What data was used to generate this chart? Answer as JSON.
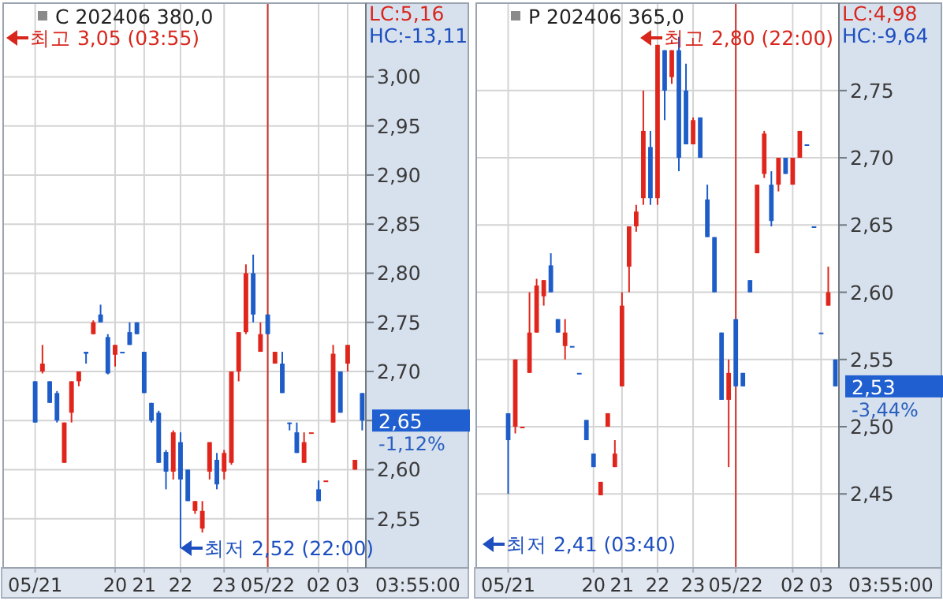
{
  "chart_data": [
    {
      "type": "candlestick",
      "title": "C 202406 380,0",
      "grid": true,
      "categories": [
        "05/21",
        null,
        null,
        null,
        null,
        null,
        null,
        null,
        null,
        null,
        null,
        "20",
        null,
        null,
        null,
        "21",
        null,
        null,
        null,
        null,
        "22",
        null,
        null,
        null,
        null,
        null,
        "23",
        null,
        null,
        null,
        null,
        null,
        "05/22",
        null,
        null,
        null,
        null,
        null,
        null,
        "02",
        null,
        null,
        null,
        "03",
        null,
        null
      ],
      "ohlc": [
        [
          2.69,
          2.69,
          2.648,
          2.648
        ],
        [
          2.7,
          2.727,
          2.698,
          2.708
        ],
        [
          2.69,
          2.69,
          2.668,
          2.668
        ],
        [
          2.678,
          2.68,
          2.648,
          2.65
        ],
        [
          2.607,
          2.648,
          2.607,
          2.648
        ],
        [
          2.658,
          2.69,
          2.648,
          2.69
        ],
        [
          2.69,
          2.7,
          2.685,
          2.7
        ],
        [
          2.72,
          2.72,
          2.708,
          2.718
        ],
        [
          2.738,
          2.752,
          2.738,
          2.75
        ],
        [
          2.758,
          2.768,
          2.75,
          2.75
        ],
        [
          2.735,
          2.738,
          2.697,
          2.698
        ],
        [
          2.717,
          2.727,
          2.705,
          2.727
        ],
        [
          2.72,
          2.72,
          2.72,
          2.72
        ],
        [
          2.74,
          2.75,
          2.727,
          2.727
        ],
        [
          2.75,
          2.75,
          2.738,
          2.738
        ],
        [
          2.72,
          2.72,
          2.678,
          2.678
        ],
        [
          2.668,
          2.668,
          2.648,
          2.65
        ],
        [
          2.658,
          2.66,
          2.607,
          2.607
        ],
        [
          2.618,
          2.62,
          2.58,
          2.598
        ],
        [
          2.598,
          2.64,
          2.59,
          2.638
        ],
        [
          2.628,
          2.638,
          2.52,
          2.59
        ],
        [
          2.6,
          2.6,
          2.568,
          2.568
        ],
        [
          2.558,
          2.568,
          2.555,
          2.568
        ],
        [
          2.54,
          2.568,
          2.536,
          2.558
        ],
        [
          2.598,
          2.628,
          2.59,
          2.628
        ],
        [
          2.61,
          2.617,
          2.58,
          2.585
        ],
        [
          2.598,
          2.62,
          2.59,
          2.617
        ],
        [
          2.607,
          2.7,
          2.605,
          2.7
        ],
        [
          2.7,
          2.74,
          2.69,
          2.74
        ],
        [
          2.74,
          2.809,
          2.738,
          2.8
        ],
        [
          2.8,
          2.819,
          2.75,
          2.758
        ],
        [
          2.72,
          2.75,
          2.72,
          2.738
        ],
        [
          2.758,
          2.758,
          2.738,
          2.738
        ],
        [
          2.708,
          2.72,
          2.708,
          2.72
        ],
        [
          2.708,
          2.72,
          2.678,
          2.678
        ],
        [
          2.648,
          2.648,
          2.64,
          2.648
        ],
        [
          2.638,
          2.648,
          2.617,
          2.617
        ],
        [
          2.607,
          2.638,
          2.607,
          2.628
        ],
        [
          2.638,
          2.638,
          2.638,
          2.638
        ],
        [
          2.58,
          2.589,
          2.568,
          2.568
        ],
        [
          2.589,
          2.589,
          2.589,
          2.589
        ],
        [
          2.648,
          2.727,
          2.648,
          2.718
        ],
        [
          2.7,
          2.7,
          2.658,
          2.658
        ],
        [
          2.708,
          2.727,
          2.7,
          2.727
        ],
        [
          2.6,
          2.61,
          2.6,
          2.61
        ],
        [
          2.678,
          2.678,
          2.64,
          2.65
        ]
      ],
      "colors": [
        "#1e5cc8",
        "#e0261c",
        "#1e5cc8",
        "#1e5cc8",
        "#e0261c",
        "#e0261c",
        "#e0261c",
        "#1e5cc8",
        "#e0261c",
        "#1e5cc8",
        "#1e5cc8",
        "#e0261c",
        "#1e5cc8",
        "#1e5cc8",
        "#1e5cc8",
        "#1e5cc8",
        "#1e5cc8",
        "#1e5cc8",
        "#1e5cc8",
        "#e0261c",
        "#1e5cc8",
        "#1e5cc8",
        "#e0261c",
        "#e0261c",
        "#e0261c",
        "#1e5cc8",
        "#e0261c",
        "#e0261c",
        "#e0261c",
        "#e0261c",
        "#1e5cc8",
        "#e0261c",
        "#1e5cc8",
        "#e0261c",
        "#1e5cc8",
        "#1e5cc8",
        "#1e5cc8",
        "#e0261c",
        "#e0261c",
        "#1e5cc8",
        "#e0261c",
        "#e0261c",
        "#1e5cc8",
        "#e0261c",
        "#e0261c",
        "#1e5cc8"
      ],
      "ylim": [
        2.5,
        3.075
      ],
      "yticks": [
        {
          "value": 2.55,
          "label": "2,55"
        },
        {
          "value": 2.6,
          "label": "2,60"
        },
        {
          "value": 2.65,
          "label": null
        },
        {
          "value": 2.7,
          "label": "2,70"
        },
        {
          "value": 2.75,
          "label": "2,75"
        },
        {
          "value": 2.8,
          "label": "2,80"
        },
        {
          "value": 2.85,
          "label": "2,85"
        },
        {
          "value": 2.9,
          "label": "2,90"
        },
        {
          "value": 2.95,
          "label": "2,95"
        },
        {
          "value": 3.0,
          "label": "3,00"
        }
      ],
      "ref_lines": [
        {
          "axis": "x",
          "value": "05/22",
          "color": "#c8342c"
        }
      ],
      "annotations": [
        "최고 3,05 (03:55)",
        {
          "text": "최저 2,52 (22:00)",
          "x": "22",
          "y": 2.52
        },
        "LC:5,16",
        "HC:-13,11",
        "2,65",
        "-1,12%",
        "03:55:00"
      ]
    },
    {
      "type": "candlestick",
      "title": "P 202406 365,0",
      "grid": true,
      "categories": [
        "05/21",
        null,
        null,
        null,
        null,
        null,
        null,
        null,
        null,
        null,
        null,
        null,
        "20",
        null,
        null,
        null,
        "21",
        null,
        null,
        null,
        null,
        "22",
        null,
        null,
        null,
        null,
        "23",
        null,
        null,
        null,
        null,
        null,
        "05/22",
        null,
        null,
        null,
        null,
        null,
        null,
        null,
        "02",
        null,
        null,
        null,
        "03",
        null,
        null
      ],
      "ohlc": [
        [
          2.51,
          2.51,
          2.45,
          2.49
        ],
        [
          2.5,
          2.55,
          2.495,
          2.55
        ],
        [
          2.5,
          2.5,
          2.5,
          2.5
        ],
        [
          2.54,
          2.6,
          2.54,
          2.57
        ],
        [
          2.57,
          2.61,
          2.57,
          2.605
        ],
        [
          2.597,
          2.609,
          2.59,
          2.609
        ],
        [
          2.62,
          2.629,
          2.6,
          2.6
        ],
        [
          2.58,
          2.58,
          2.57,
          2.57
        ],
        [
          2.56,
          2.58,
          2.55,
          2.57
        ],
        [
          2.56,
          2.56,
          2.56,
          2.56
        ],
        [
          2.54,
          2.54,
          2.54,
          2.54
        ],
        [
          2.505,
          2.505,
          2.49,
          2.49
        ],
        [
          2.48,
          2.48,
          2.47,
          2.47
        ],
        [
          2.449,
          2.459,
          2.449,
          2.459
        ],
        [
          2.5,
          2.51,
          2.5,
          2.51
        ],
        [
          2.47,
          2.49,
          2.47,
          2.48
        ],
        [
          2.53,
          2.6,
          2.53,
          2.59
        ],
        [
          2.619,
          2.649,
          2.6,
          2.649
        ],
        [
          2.649,
          2.665,
          2.645,
          2.66
        ],
        [
          2.67,
          2.75,
          2.665,
          2.72
        ],
        [
          2.708,
          2.72,
          2.665,
          2.67
        ],
        [
          2.67,
          2.784,
          2.665,
          2.784
        ],
        [
          2.78,
          2.78,
          2.728,
          2.75
        ],
        [
          2.76,
          2.78,
          2.755,
          2.78
        ],
        [
          2.78,
          2.79,
          2.69,
          2.7
        ],
        [
          2.75,
          2.77,
          2.71,
          2.71
        ],
        [
          2.71,
          2.73,
          2.71,
          2.728
        ],
        [
          2.73,
          2.73,
          2.7,
          2.7
        ],
        [
          2.669,
          2.68,
          2.641,
          2.641
        ],
        [
          2.641,
          2.641,
          2.6,
          2.6
        ],
        [
          2.57,
          2.57,
          2.52,
          2.52
        ],
        [
          2.52,
          2.55,
          2.47,
          2.54
        ],
        [
          2.58,
          2.58,
          2.53,
          2.53
        ],
        [
          2.54,
          2.54,
          2.53,
          2.53
        ],
        [
          2.609,
          2.609,
          2.6,
          2.6
        ],
        [
          2.629,
          2.68,
          2.629,
          2.68
        ],
        [
          2.688,
          2.72,
          2.685,
          2.718
        ],
        [
          2.68,
          2.69,
          2.649,
          2.653
        ],
        [
          2.68,
          2.7,
          2.675,
          2.7
        ],
        [
          2.7,
          2.7,
          2.688,
          2.688
        ],
        [
          2.68,
          2.7,
          2.68,
          2.7
        ],
        [
          2.7,
          2.72,
          2.7,
          2.72
        ],
        [
          2.71,
          2.71,
          2.71,
          2.71
        ],
        [
          2.649,
          2.649,
          2.649,
          2.649
        ],
        [
          2.57,
          2.57,
          2.57,
          2.57
        ],
        [
          2.59,
          2.619,
          2.59,
          2.6
        ],
        [
          2.55,
          2.55,
          2.53,
          2.53
        ]
      ],
      "colors": [
        "#1e5cc8",
        "#e0261c",
        "#e0261c",
        "#e0261c",
        "#e0261c",
        "#e0261c",
        "#1e5cc8",
        "#1e5cc8",
        "#e0261c",
        "#1e5cc8",
        "#1e5cc8",
        "#1e5cc8",
        "#1e5cc8",
        "#e0261c",
        "#e0261c",
        "#e0261c",
        "#e0261c",
        "#e0261c",
        "#e0261c",
        "#e0261c",
        "#1e5cc8",
        "#e0261c",
        "#1e5cc8",
        "#e0261c",
        "#1e5cc8",
        "#1e5cc8",
        "#e0261c",
        "#1e5cc8",
        "#1e5cc8",
        "#1e5cc8",
        "#1e5cc8",
        "#e0261c",
        "#1e5cc8",
        "#1e5cc8",
        "#1e5cc8",
        "#e0261c",
        "#e0261c",
        "#1e5cc8",
        "#e0261c",
        "#1e5cc8",
        "#e0261c",
        "#e0261c",
        "#1e5cc8",
        "#1e5cc8",
        "#1e5cc8",
        "#e0261c",
        "#1e5cc8"
      ],
      "ylim": [
        2.395,
        2.815
      ],
      "yticks": [
        {
          "value": 2.45,
          "label": "2,45"
        },
        {
          "value": 2.5,
          "label": "2,50"
        },
        {
          "value": 2.55,
          "label": "2,55"
        },
        {
          "value": 2.6,
          "label": "2,60"
        },
        {
          "value": 2.65,
          "label": "2,65"
        },
        {
          "value": 2.7,
          "label": "2,70"
        },
        {
          "value": 2.75,
          "label": "2,75"
        }
      ],
      "ref_lines": [
        {
          "axis": "x",
          "value": "05/22",
          "color": "#c8342c"
        }
      ],
      "annotations": [
        "최고 2,80 (22:00)",
        "최저 2,41 (03:40)",
        "LC:4,98",
        "HC:-9,64",
        "2,53",
        "-3,44%",
        "03:55:00"
      ]
    }
  ]
}
